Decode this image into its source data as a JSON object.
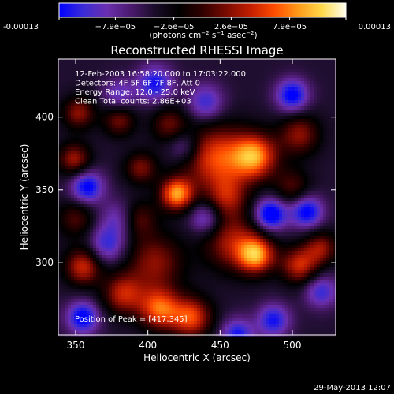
{
  "colorbar": {
    "ticks": [
      "-0.00013",
      "−7.9e−05",
      "−2.6e−05",
      "2.6e−05",
      "7.9e−05",
      "0.00013"
    ],
    "tick_values": [
      -0.00013,
      -7.9e-05,
      -2.6e-05,
      2.6e-05,
      7.9e-05,
      0.00013
    ],
    "units_prefix": "(photons cm",
    "units_e1": "−2",
    "units_mid1": " s",
    "units_e2": "−1",
    "units_mid2": " asec",
    "units_e3": "−2",
    "units_suffix": ")",
    "colors": [
      "#0000ff",
      "#3a2bd6",
      "#6a2fb0",
      "#4b1a6e",
      "#1b0d2a",
      "#000000",
      "#300000",
      "#7a0a00",
      "#c21e00",
      "#ff4b00",
      "#ff9a1a",
      "#ffd94a",
      "#fffff0"
    ]
  },
  "chart_data": {
    "type": "heatmap",
    "title": "Reconstructed RHESSI Image",
    "xlabel": "Heliocentric X (arcsec)",
    "ylabel": "Heliocentric Y (arcsec)",
    "xlim": [
      338,
      530
    ],
    "ylim": [
      250,
      440
    ],
    "xticks": [
      "350",
      "400",
      "450",
      "500"
    ],
    "xtick_values": [
      350,
      400,
      450,
      500
    ],
    "yticks": [
      "300",
      "350",
      "400"
    ],
    "ytick_values": [
      300,
      350,
      400
    ],
    "info_lines": [
      "12-Feb-2003 16:58:20.000 to 17:03:22.000",
      "Detectors: 4F 5F 6F 7F 8F, Att 0",
      "Energy Range: 12.0 - 25.0 keV",
      "Clean     Total counts: 2.86E+03"
    ],
    "peak_label": "Position of Peak = [417,345]",
    "peak": [
      417,
      345
    ],
    "background_level": -0.35,
    "blobs": [
      {
        "x": 420,
        "y": 347,
        "v": 1.0,
        "s": 8
      },
      {
        "x": 447,
        "y": 372,
        "v": 0.8,
        "s": 16
      },
      {
        "x": 474,
        "y": 373,
        "v": 0.95,
        "s": 11
      },
      {
        "x": 505,
        "y": 388,
        "v": 0.55,
        "s": 10
      },
      {
        "x": 475,
        "y": 305,
        "v": 0.95,
        "s": 9
      },
      {
        "x": 458,
        "y": 314,
        "v": 0.6,
        "s": 14
      },
      {
        "x": 405,
        "y": 300,
        "v": 0.55,
        "s": 14
      },
      {
        "x": 393,
        "y": 330,
        "v": 0.45,
        "s": 9
      },
      {
        "x": 408,
        "y": 268,
        "v": 0.85,
        "s": 10
      },
      {
        "x": 430,
        "y": 262,
        "v": 0.8,
        "s": 10
      },
      {
        "x": 383,
        "y": 278,
        "v": 0.65,
        "s": 10
      },
      {
        "x": 355,
        "y": 297,
        "v": 0.7,
        "s": 9
      },
      {
        "x": 349,
        "y": 371,
        "v": 0.6,
        "s": 8
      },
      {
        "x": 352,
        "y": 403,
        "v": 0.55,
        "s": 8
      },
      {
        "x": 380,
        "y": 398,
        "v": 0.5,
        "s": 8
      },
      {
        "x": 415,
        "y": 395,
        "v": 0.45,
        "s": 9
      },
      {
        "x": 395,
        "y": 365,
        "v": 0.5,
        "s": 8
      },
      {
        "x": 505,
        "y": 298,
        "v": 0.7,
        "s": 9
      },
      {
        "x": 520,
        "y": 310,
        "v": 0.55,
        "s": 8
      },
      {
        "x": 455,
        "y": 345,
        "v": 0.5,
        "s": 10
      },
      {
        "x": 350,
        "y": 330,
        "v": 0.4,
        "s": 9
      },
      {
        "x": 500,
        "y": 352,
        "v": 0.4,
        "s": 9
      },
      {
        "x": 355,
        "y": 262,
        "v": -0.7,
        "s": 8
      },
      {
        "x": 462,
        "y": 250,
        "v": -0.6,
        "s": 8
      },
      {
        "x": 500,
        "y": 415,
        "v": -0.7,
        "s": 8
      },
      {
        "x": 485,
        "y": 333,
        "v": -0.8,
        "s": 8
      },
      {
        "x": 510,
        "y": 335,
        "v": -0.7,
        "s": 8
      },
      {
        "x": 358,
        "y": 352,
        "v": -0.7,
        "s": 8
      },
      {
        "x": 405,
        "y": 423,
        "v": -0.6,
        "s": 9
      },
      {
        "x": 372,
        "y": 312,
        "v": -0.5,
        "s": 9
      },
      {
        "x": 487,
        "y": 260,
        "v": -0.6,
        "s": 8
      },
      {
        "x": 380,
        "y": 330,
        "v": -0.4,
        "s": 9
      },
      {
        "x": 440,
        "y": 330,
        "v": -0.5,
        "s": 8
      },
      {
        "x": 440,
        "y": 410,
        "v": -0.5,
        "s": 9
      },
      {
        "x": 425,
        "y": 380,
        "v": -0.4,
        "s": 8
      },
      {
        "x": 520,
        "y": 280,
        "v": -0.5,
        "s": 8
      },
      {
        "x": 380,
        "y": 415,
        "v": -0.4,
        "s": 8
      }
    ]
  },
  "footer": {
    "date_stamp": "29-May-2013 12:07"
  }
}
